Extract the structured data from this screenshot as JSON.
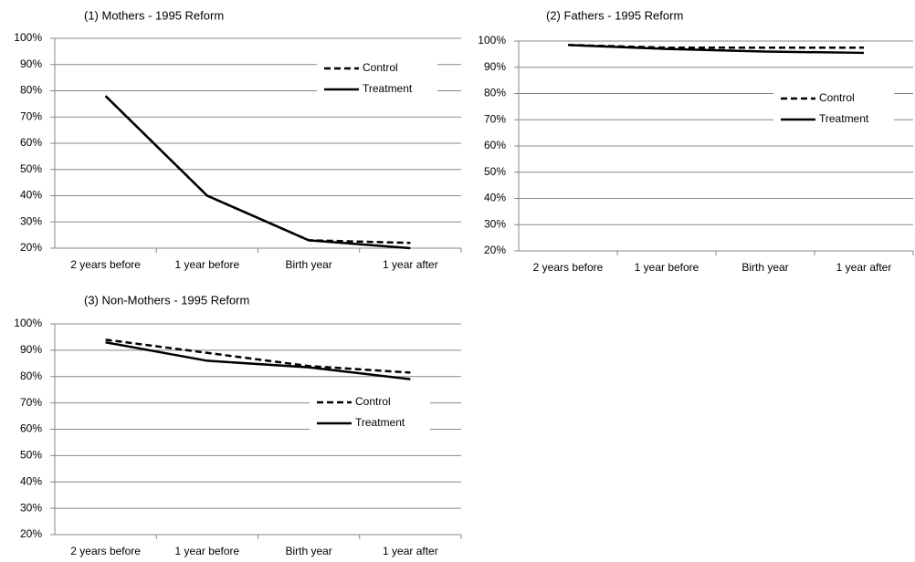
{
  "chart_data": [
    {
      "type": "line",
      "title": "(1) Mothers - 1995 Reform",
      "categories": [
        "2 years before",
        "1 year before",
        "Birth year",
        "1 year after"
      ],
      "series": [
        {
          "name": "Control",
          "color": "#000000",
          "line_style": "dashed",
          "values": [
            78,
            40,
            23,
            22
          ]
        },
        {
          "name": "Treatment",
          "color": "#000000",
          "line_style": "solid",
          "values": [
            78,
            40,
            23,
            20
          ]
        }
      ],
      "ylim": [
        20,
        100
      ],
      "yticks": [
        {
          "value": 20,
          "label": "20%"
        },
        {
          "value": 30,
          "label": "30%"
        },
        {
          "value": 40,
          "label": "40%"
        },
        {
          "value": 50,
          "label": "50%"
        },
        {
          "value": 60,
          "label": "60%"
        },
        {
          "value": 70,
          "label": "70%"
        },
        {
          "value": 80,
          "label": "80%"
        },
        {
          "value": 90,
          "label": "90%"
        },
        {
          "value": 100,
          "label": "100%"
        }
      ],
      "grid": true,
      "legend": "top-right"
    },
    {
      "type": "line",
      "title": "(2) Fathers - 1995 Reform",
      "categories": [
        "2 years before",
        "1 year before",
        "Birth year",
        "1 year after"
      ],
      "series": [
        {
          "name": "Control",
          "color": "#000000",
          "line_style": "dashed",
          "values": [
            98.5,
            97.5,
            97.5,
            97.5
          ]
        },
        {
          "name": "Treatment",
          "color": "#000000",
          "line_style": "solid",
          "values": [
            98.5,
            97,
            96,
            95.5
          ]
        }
      ],
      "ylim": [
        20,
        100
      ],
      "yticks": [
        {
          "value": 20,
          "label": "20%"
        },
        {
          "value": 30,
          "label": "30%"
        },
        {
          "value": 40,
          "label": "40%"
        },
        {
          "value": 50,
          "label": "50%"
        },
        {
          "value": 60,
          "label": "60%"
        },
        {
          "value": 70,
          "label": "70%"
        },
        {
          "value": 80,
          "label": "80%"
        },
        {
          "value": 90,
          "label": "90%"
        },
        {
          "value": 100,
          "label": "100%"
        }
      ],
      "grid": true,
      "legend": "right"
    },
    {
      "type": "line",
      "title": "(3) Non-Mothers - 1995 Reform",
      "categories": [
        "2 years before",
        "1 year before",
        "Birth year",
        "1 year after"
      ],
      "series": [
        {
          "name": "Control",
          "color": "#000000",
          "line_style": "dashed",
          "values": [
            94,
            89,
            84,
            81.5
          ]
        },
        {
          "name": "Treatment",
          "color": "#000000",
          "line_style": "solid",
          "values": [
            93,
            86,
            83.5,
            79
          ]
        }
      ],
      "ylim": [
        20,
        100
      ],
      "yticks": [
        {
          "value": 20,
          "label": "20%"
        },
        {
          "value": 30,
          "label": "30%"
        },
        {
          "value": 40,
          "label": "40%"
        },
        {
          "value": 50,
          "label": "50%"
        },
        {
          "value": 60,
          "label": "60%"
        },
        {
          "value": 70,
          "label": "70%"
        },
        {
          "value": 80,
          "label": "80%"
        },
        {
          "value": 90,
          "label": "90%"
        },
        {
          "value": 100,
          "label": "100%"
        }
      ],
      "grid": true,
      "legend": "right"
    }
  ]
}
